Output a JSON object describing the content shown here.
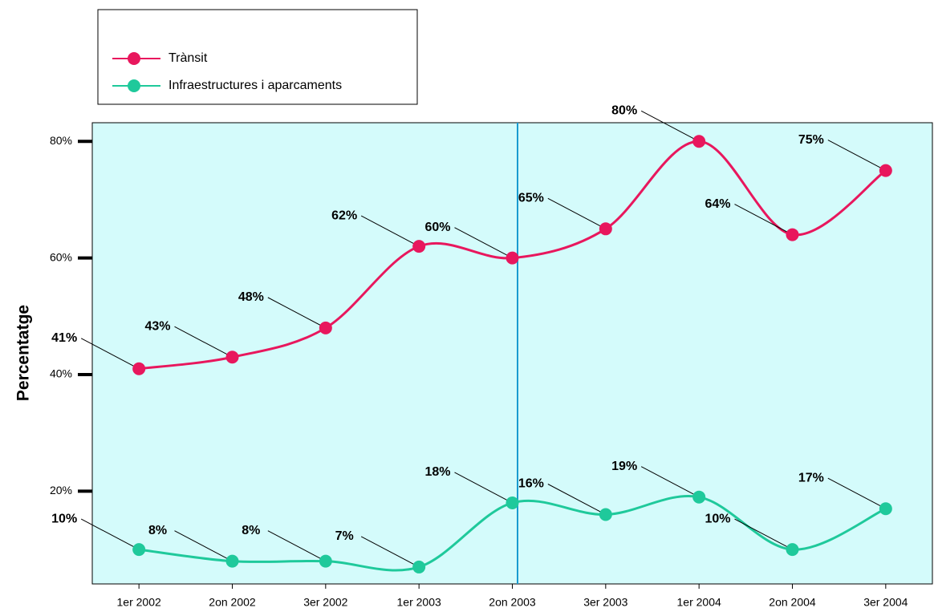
{
  "chart_data": {
    "type": "line",
    "y_label": "Percentatge",
    "categories": [
      "1er 2002",
      "2on 2002",
      "3er 2002",
      "1er 2003",
      "2on 2003",
      "3er 2003",
      "1er 2004",
      "2on 2004",
      "3er 2004"
    ],
    "series": [
      {
        "name": "Trànsit",
        "color": "#e8175d",
        "values": [
          41,
          43,
          48,
          62,
          60,
          65,
          80,
          64,
          75
        ],
        "value_labels": [
          "41%",
          "43%",
          "48%",
          "62%",
          "60%",
          "65%",
          "80%",
          "64%",
          "75%"
        ]
      },
      {
        "name": "Infraestructures i aparcaments",
        "color": "#1fc99b",
        "values": [
          10,
          8,
          8,
          7,
          18,
          16,
          19,
          10,
          17
        ],
        "value_labels": [
          "10%",
          "8%",
          "8%",
          "7%",
          "18%",
          "16%",
          "19%",
          "10%",
          "17%"
        ]
      }
    ],
    "ylim": [
      4.1,
      83.2
    ],
    "yticks": [
      {
        "value": 20,
        "label": "20%"
      },
      {
        "value": 40,
        "label": "40%"
      },
      {
        "value": 60,
        "label": "60%"
      },
      {
        "value": 80,
        "label": "80%"
      }
    ]
  }
}
